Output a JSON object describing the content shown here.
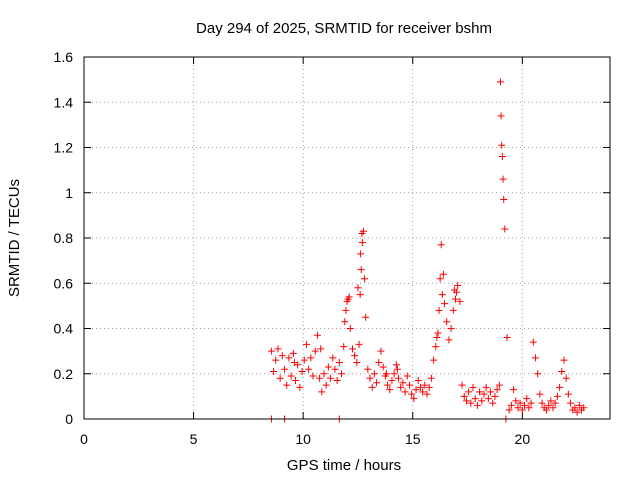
{
  "chart_data": {
    "type": "scatter",
    "title": "Day 294 of 2025, SRMTID for receiver bshm",
    "xlabel": "GPS time / hours",
    "ylabel": "SRMTID / TECUs",
    "xlim": [
      0,
      24
    ],
    "ylim": [
      0,
      1.6
    ],
    "xticks": [
      0,
      5,
      10,
      15,
      20
    ],
    "yticks": [
      0,
      0.2,
      0.4,
      0.6,
      0.8,
      1,
      1.2,
      1.4,
      1.6
    ],
    "ytick_labels": [
      "0",
      "0.2",
      "0.4",
      "0.6",
      "0.8",
      "1",
      "1.2",
      "1.4",
      "1.6"
    ],
    "grid": true,
    "marker": "+",
    "color": "#ff0000",
    "series": [
      {
        "name": "SRMTID",
        "x": [
          8.55,
          8.65,
          8.75,
          8.85,
          8.95,
          9.05,
          9.15,
          9.25,
          9.35,
          9.45,
          9.55,
          9.65,
          9.75,
          9.85,
          9.95,
          10.05,
          10.15,
          10.25,
          10.35,
          10.45,
          10.55,
          10.65,
          10.75,
          10.85,
          10.95,
          11.05,
          11.15,
          11.25,
          11.35,
          11.45,
          11.55,
          11.65,
          11.75,
          11.85,
          11.95,
          12.05,
          12.15,
          12.25,
          12.35,
          12.45,
          12.55,
          12.6,
          12.65,
          12.7,
          12.75,
          12.8,
          12.85,
          12.95,
          13.05,
          13.15,
          13.25,
          13.35,
          13.45,
          13.55,
          13.65,
          13.75,
          13.85,
          13.95,
          14.05,
          14.15,
          14.25,
          14.35,
          14.45,
          14.55,
          14.65,
          14.75,
          14.85,
          14.95,
          15.05,
          15.15,
          15.25,
          15.35,
          15.45,
          15.55,
          15.65,
          15.75,
          15.85,
          15.95,
          16.05,
          16.15,
          16.2,
          16.25,
          16.3,
          16.35,
          16.45,
          16.55,
          16.65,
          16.75,
          16.85,
          16.95,
          17.05,
          17.15,
          17.25,
          17.35,
          17.45,
          17.55,
          17.65,
          17.75,
          17.85,
          17.95,
          18.05,
          18.15,
          18.25,
          18.35,
          18.45,
          18.55,
          18.65,
          18.75,
          18.85,
          18.95,
          19.0,
          19.03,
          19.06,
          19.09,
          19.12,
          19.15,
          19.2,
          19.3,
          19.4,
          19.5,
          19.6,
          19.7,
          19.8,
          19.9,
          20.0,
          20.1,
          20.2,
          20.3,
          20.4,
          20.5,
          20.6,
          20.7,
          20.8,
          20.9,
          21.0,
          21.1,
          21.2,
          21.3,
          21.4,
          21.5,
          21.6,
          21.7,
          21.8,
          21.9,
          22.0,
          22.1,
          22.2,
          22.3,
          22.4,
          22.5,
          22.6,
          22.7,
          22.8,
          8.55,
          9.15,
          11.65,
          19.25,
          9.6,
          10.8,
          11.9,
          12.0,
          12.1,
          12.5,
          12.62,
          12.68,
          13.8,
          14.3,
          16.1,
          16.4,
          16.9,
          17.0
        ],
        "y": [
          0.3,
          0.21,
          0.26,
          0.31,
          0.18,
          0.28,
          0.22,
          0.15,
          0.27,
          0.19,
          0.29,
          0.17,
          0.24,
          0.14,
          0.21,
          0.26,
          0.33,
          0.22,
          0.27,
          0.19,
          0.3,
          0.37,
          0.18,
          0.12,
          0.2,
          0.15,
          0.23,
          0.18,
          0.27,
          0.22,
          0.17,
          0.25,
          0.2,
          0.32,
          0.48,
          0.53,
          0.4,
          0.31,
          0.28,
          0.25,
          0.33,
          0.55,
          0.66,
          0.78,
          0.83,
          0.62,
          0.45,
          0.22,
          0.18,
          0.14,
          0.2,
          0.16,
          0.25,
          0.3,
          0.23,
          0.19,
          0.15,
          0.13,
          0.17,
          0.2,
          0.24,
          0.18,
          0.14,
          0.16,
          0.12,
          0.19,
          0.15,
          0.11,
          0.09,
          0.13,
          0.17,
          0.14,
          0.12,
          0.15,
          0.11,
          0.14,
          0.18,
          0.26,
          0.32,
          0.38,
          0.48,
          0.62,
          0.77,
          0.55,
          0.51,
          0.43,
          0.35,
          0.4,
          0.48,
          0.53,
          0.59,
          0.52,
          0.15,
          0.1,
          0.08,
          0.12,
          0.07,
          0.14,
          0.09,
          0.06,
          0.12,
          0.08,
          0.11,
          0.14,
          0.09,
          0.12,
          0.07,
          0.1,
          0.13,
          0.15,
          1.49,
          1.34,
          1.21,
          1.16,
          1.06,
          0.97,
          0.84,
          0.36,
          0.04,
          0.06,
          0.13,
          0.08,
          0.05,
          0.07,
          0.04,
          0.06,
          0.09,
          0.05,
          0.07,
          0.34,
          0.27,
          0.2,
          0.11,
          0.07,
          0.05,
          0.04,
          0.06,
          0.08,
          0.05,
          0.07,
          0.1,
          0.14,
          0.21,
          0.26,
          0.18,
          0.11,
          0.07,
          0.04,
          0.05,
          0.03,
          0.06,
          0.04,
          0.05,
          0.0,
          0.0,
          0.0,
          0.0,
          0.25,
          0.31,
          0.43,
          0.52,
          0.54,
          0.58,
          0.73,
          0.82,
          0.2,
          0.22,
          0.36,
          0.64,
          0.57,
          0.56
        ]
      }
    ]
  }
}
